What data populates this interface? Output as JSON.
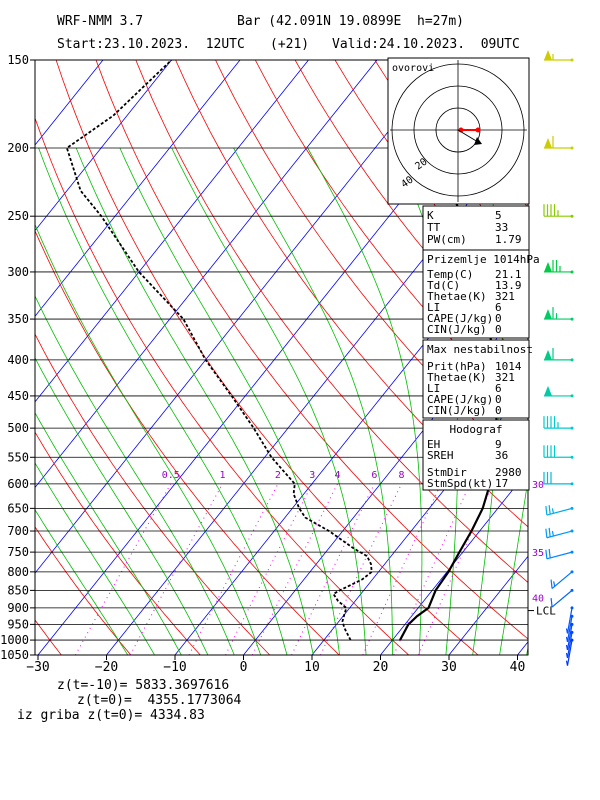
{
  "header": {
    "model": "WRF-NMM 3.7",
    "location": "Bar (42.091N 19.0899E  h=27m)",
    "start": "Start:23.10.2023.  12UTC",
    "lead": "(+21)",
    "valid": "Valid:24.10.2023.  09UTC"
  },
  "footer": {
    "line1": "z(t=-10)= 5833.3697616",
    "line2": "z(t=0)=  4355.1773064",
    "line3": "iz griba z(t=0)= 4334.83"
  },
  "hodograph": {
    "title": "ovorovi",
    "ring_labels": [
      "20",
      "40"
    ]
  },
  "indices": {
    "block1": [
      {
        "k": "K",
        "v": "5"
      },
      {
        "k": "TT",
        "v": "33"
      },
      {
        "k": "PW(cm)",
        "v": "1.79"
      }
    ],
    "block2_title": "Prizemlje 1014hPa",
    "block2": [
      {
        "k": "Temp(C)",
        "v": "21.1"
      },
      {
        "k": "Td(C)",
        "v": "13.9"
      },
      {
        "k": "Thetae(K)",
        "v": "321"
      },
      {
        "k": "LI",
        "v": "6"
      },
      {
        "k": "CAPE(J/kg)",
        "v": "0"
      },
      {
        "k": "CIN(J/kg)",
        "v": "0"
      }
    ],
    "block3_title": "Max nestabilnost",
    "block3": [
      {
        "k": "Prit(hPa)",
        "v": "1014"
      },
      {
        "k": "Thetae(K)",
        "v": "321"
      },
      {
        "k": "LI",
        "v": "6"
      },
      {
        "k": "CAPE(J/kg)",
        "v": "0"
      },
      {
        "k": "CIN(J/kg)",
        "v": "0"
      }
    ],
    "block4_title": "Hodograf",
    "block4": [
      {
        "k": "EH",
        "v": "9"
      },
      {
        "k": "SREH",
        "v": "36"
      },
      {
        "k": "StmDir",
        "v": "2980"
      },
      {
        "k": "StmSpd(kt)",
        "v": "17"
      }
    ]
  },
  "chart_data": {
    "type": "line",
    "title": "",
    "xlabel": "",
    "ylabel": "",
    "xlim": [
      -30,
      42
    ],
    "ylim": [
      1050,
      150
    ],
    "x_ticks": [
      -30,
      -20,
      -10,
      0,
      10,
      20,
      30,
      40
    ],
    "y_ticks": [
      150,
      200,
      250,
      300,
      350,
      400,
      450,
      500,
      550,
      600,
      650,
      700,
      750,
      800,
      850,
      900,
      950,
      1000,
      1050
    ],
    "mixing_ratio_labels": [
      "0.5",
      "1",
      "2",
      "3",
      "4",
      "6",
      "8"
    ],
    "wind_speed_labels": [
      "30",
      "35",
      "40"
    ],
    "lcl_label": "LCL",
    "colors": {
      "isobar": "#000000",
      "isotherm": "#0000ff",
      "dry_adiabat": "#ff0000",
      "moist_adiabat": "#00c000",
      "mixing_ratio": "#ff00ff",
      "labels": "#9900cc",
      "temperature": "#000000",
      "dewpoint": "#000000"
    },
    "series": [
      {
        "p": [
          1000,
          950,
          925,
          900,
          850,
          800,
          750,
          700,
          650,
          600,
          550,
          500,
          450,
          400,
          350,
          300,
          250,
          200,
          150
        ],
        "values": [
          21.1,
          20.5,
          20.8,
          21.5,
          20.5,
          20.2,
          19.5,
          18.8,
          17.8,
          16.0,
          13.5,
          10.5,
          6.5,
          2.0,
          -3.5,
          -10.5,
          -19.5,
          -31.0,
          -44.0
        ]
      },
      {
        "p": [
          1000,
          960,
          940,
          920,
          900,
          880,
          860,
          850,
          820,
          800,
          780,
          760,
          740,
          700,
          670,
          650,
          620,
          600,
          550,
          500,
          450,
          400,
          350,
          300,
          250,
          230,
          200,
          180,
          150
        ],
        "values": [
          13.9,
          11.5,
          10.5,
          10.0,
          9.5,
          7.5,
          6.0,
          6.5,
          8.5,
          9.0,
          8.0,
          6.5,
          3.5,
          -2.0,
          -7.0,
          -9.0,
          -11.5,
          -12.5,
          -19.0,
          -25.0,
          -32.0,
          -40.0,
          -48.0,
          -60.0,
          -72.0,
          -78.0,
          -85.0,
          -82.0,
          -80.0
        ]
      }
    ],
    "wind_barbs": {
      "p": [
        150,
        200,
        250,
        300,
        350,
        400,
        450,
        500,
        550,
        600,
        650,
        700,
        750,
        800,
        850,
        900,
        925,
        950,
        975,
        1000
      ],
      "speed_kt": [
        55,
        60,
        45,
        75,
        65,
        60,
        50,
        45,
        40,
        30,
        25,
        25,
        20,
        15,
        10,
        5,
        5,
        5,
        5,
        5
      ],
      "colors": [
        "#cccc00",
        "#cccc00",
        "#88cc00",
        "#00cc44",
        "#00cc66",
        "#00cc88",
        "#00ccaa",
        "#00cccc",
        "#00cccc",
        "#00bbdd",
        "#00aaee",
        "#0099ff",
        "#0088ff",
        "#0077ff",
        "#0066ff",
        "#0055ff",
        "#0055ff",
        "#0044ff",
        "#0044ff",
        "#0033ff"
      ]
    }
  }
}
